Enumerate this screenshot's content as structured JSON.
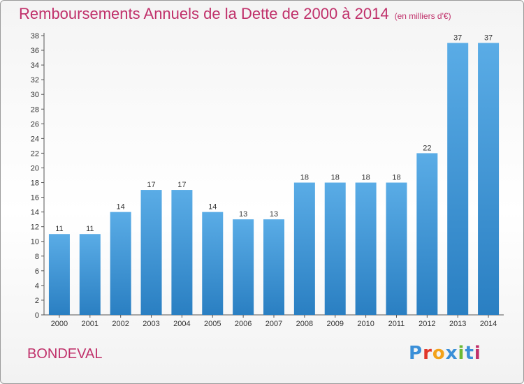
{
  "header": {
    "title": "Remboursements Annuels de la Dette de 2000 à 2014",
    "unit": "(en milliers d'€)"
  },
  "footer": {
    "commune": "BONDEVAL",
    "logo_letters": [
      "P",
      "r",
      "o",
      "x",
      "i",
      "t",
      "i"
    ],
    "logo_colors": [
      "#3a8fd8",
      "#e2372a",
      "#f3a21b",
      "#3a8fd8",
      "#6bb935",
      "#3a8fd8",
      "#c0306a"
    ]
  },
  "chart_data": {
    "type": "bar",
    "title": "Remboursements Annuels de la Dette de 2000 à 2014",
    "categories": [
      "2000",
      "2001",
      "2002",
      "2003",
      "2004",
      "2005",
      "2006",
      "2007",
      "2008",
      "2009",
      "2010",
      "2011",
      "2012",
      "2013",
      "2014"
    ],
    "values": [
      11,
      11,
      14,
      17,
      17,
      14,
      13,
      13,
      18,
      18,
      18,
      18,
      22,
      37,
      37
    ],
    "ylim": [
      0,
      38
    ],
    "yticks": [
      0,
      2,
      4,
      6,
      8,
      10,
      12,
      14,
      16,
      18,
      20,
      22,
      24,
      26,
      28,
      30,
      32,
      34,
      36,
      38
    ],
    "grid": false,
    "bar_color_top": "#5aace6",
    "bar_color_bottom": "#2a7fc2"
  }
}
